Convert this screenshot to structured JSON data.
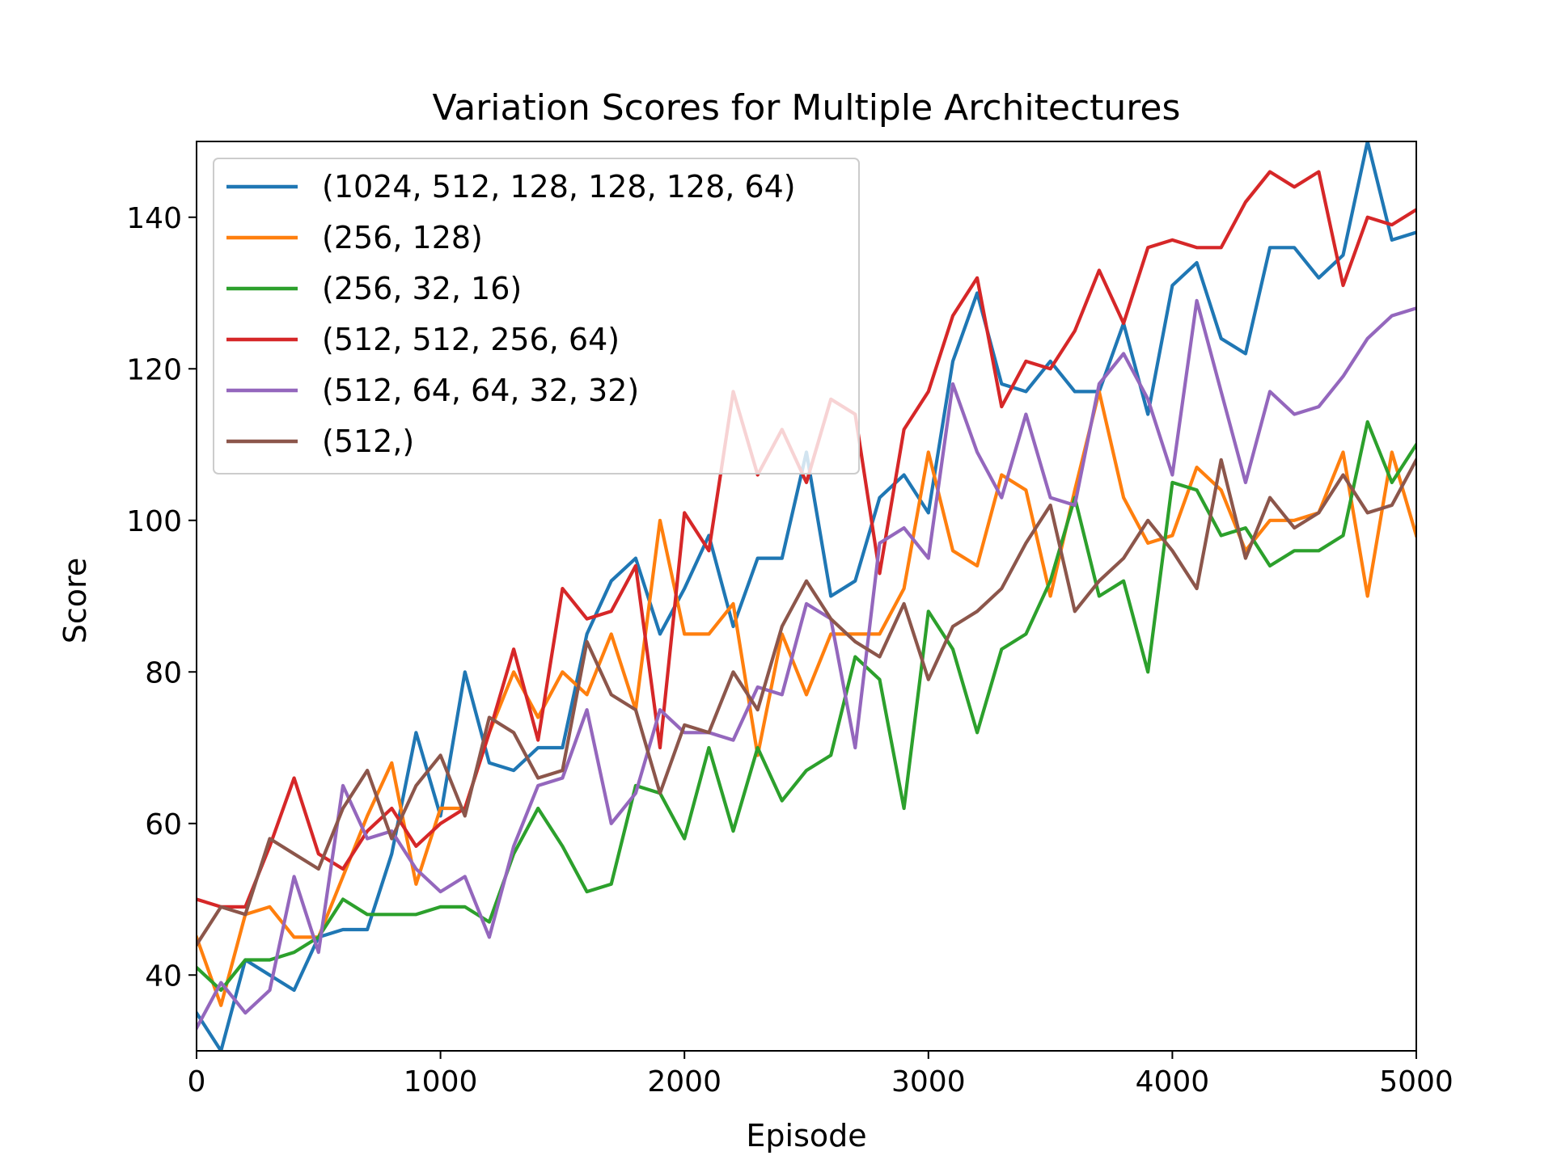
{
  "chart_data": {
    "type": "line",
    "title": "Variation Scores for Multiple Architectures",
    "xlabel": "Episode",
    "ylabel": "Score",
    "xlim": [
      0,
      5000
    ],
    "ylim": [
      30,
      150
    ],
    "xticks": [
      0,
      1000,
      2000,
      3000,
      4000,
      5000
    ],
    "yticks": [
      40,
      60,
      80,
      100,
      120,
      140
    ],
    "grid": false,
    "legend_position": "top-left",
    "x": [
      0,
      100,
      200,
      300,
      400,
      500,
      600,
      700,
      800,
      900,
      1000,
      1100,
      1200,
      1300,
      1400,
      1500,
      1600,
      1700,
      1800,
      1900,
      2000,
      2100,
      2200,
      2300,
      2400,
      2500,
      2600,
      2700,
      2800,
      2900,
      3000,
      3100,
      3200,
      3300,
      3400,
      3500,
      3600,
      3700,
      3800,
      3900,
      4000,
      4100,
      4200,
      4300,
      4400,
      4500,
      4600,
      4700,
      4800,
      4900,
      5000
    ],
    "series": [
      {
        "name": "(1024, 512, 128, 128, 128, 64)",
        "color": "#1f77b4",
        "values": [
          35,
          30,
          42,
          40,
          38,
          45,
          46,
          46,
          56,
          72,
          61,
          80,
          68,
          67,
          70,
          70,
          85,
          92,
          95,
          85,
          91,
          98,
          86,
          95,
          95,
          109,
          90,
          92,
          103,
          106,
          101,
          121,
          130,
          118,
          117,
          121,
          117,
          117,
          126,
          114,
          131,
          134,
          124,
          122,
          136,
          136,
          132,
          135,
          150,
          137,
          138
        ]
      },
      {
        "name": "(256, 128)",
        "color": "#ff7f0e",
        "values": [
          45,
          36,
          48,
          49,
          45,
          45,
          53,
          61,
          68,
          52,
          62,
          62,
          72,
          80,
          74,
          80,
          77,
          85,
          75,
          100,
          85,
          85,
          89,
          69,
          85,
          77,
          85,
          85,
          85,
          91,
          109,
          96,
          94,
          106,
          104,
          90,
          104,
          117,
          103,
          97,
          98,
          107,
          104,
          96,
          100,
          100,
          101,
          109,
          90,
          109,
          98
        ]
      },
      {
        "name": "(256, 32, 16)",
        "color": "#2ca02c",
        "values": [
          41,
          38,
          42,
          42,
          43,
          45,
          50,
          48,
          48,
          48,
          49,
          49,
          47,
          56,
          62,
          57,
          51,
          52,
          65,
          64,
          58,
          70,
          59,
          70,
          63,
          67,
          69,
          82,
          79,
          62,
          88,
          83,
          72,
          83,
          85,
          92,
          103,
          90,
          92,
          80,
          105,
          104,
          98,
          99,
          94,
          96,
          96,
          98,
          113,
          105,
          110
        ]
      },
      {
        "name": "(512, 512, 256, 64)",
        "color": "#d62728",
        "values": [
          50,
          49,
          49,
          57,
          66,
          56,
          54,
          59,
          62,
          57,
          60,
          62,
          72,
          83,
          71,
          91,
          87,
          88,
          94,
          70,
          101,
          96,
          117,
          106,
          112,
          105,
          116,
          114,
          93,
          112,
          117,
          127,
          132,
          115,
          121,
          120,
          125,
          133,
          126,
          136,
          137,
          136,
          136,
          142,
          146,
          144,
          146,
          131,
          140,
          139,
          141
        ]
      },
      {
        "name": "(512, 64, 64, 32, 32)",
        "color": "#9467bd",
        "values": [
          33,
          39,
          35,
          38,
          53,
          43,
          65,
          58,
          59,
          54,
          51,
          53,
          45,
          57,
          65,
          66,
          75,
          60,
          64,
          75,
          72,
          72,
          71,
          78,
          77,
          89,
          87,
          70,
          97,
          99,
          95,
          118,
          109,
          103,
          114,
          103,
          102,
          118,
          122,
          116,
          106,
          129,
          117,
          105,
          117,
          114,
          115,
          119,
          124,
          127,
          128
        ]
      },
      {
        "name": "(512,)",
        "color": "#8c564b",
        "values": [
          44,
          49,
          48,
          58,
          56,
          54,
          62,
          67,
          58,
          65,
          69,
          61,
          74,
          72,
          66,
          67,
          84,
          77,
          75,
          64,
          73,
          72,
          80,
          75,
          86,
          92,
          87,
          84,
          82,
          89,
          79,
          86,
          88,
          91,
          97,
          102,
          88,
          92,
          95,
          100,
          96,
          91,
          108,
          95,
          103,
          99,
          101,
          106,
          101,
          102,
          108
        ]
      }
    ]
  }
}
